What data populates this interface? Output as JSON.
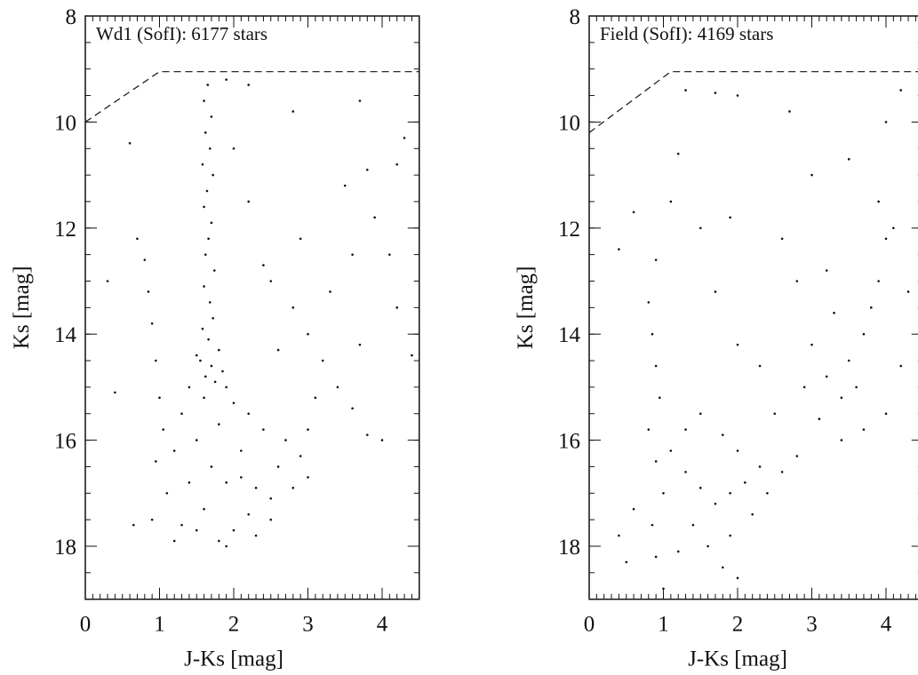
{
  "chart_data": [
    {
      "type": "scatter",
      "annotation": "Wd1 (SofI): 6177 stars",
      "x_label": "J-Ks [mag]",
      "y_label": "Ks [mag]",
      "xlim": [
        0,
        4.5
      ],
      "ylim": [
        8,
        19
      ],
      "y_inverted": true,
      "xticks": [
        0,
        1,
        2,
        3,
        4
      ],
      "yticks": [
        8,
        10,
        12,
        14,
        16,
        18
      ],
      "minor_xstep": 0.1,
      "minor_ystep": 0.5,
      "color": "#111111",
      "limit_line": {
        "x": [
          0,
          1,
          4.5
        ],
        "y": [
          10,
          9.05,
          9.05
        ]
      },
      "x": [
        1.65,
        1.6,
        1.7,
        1.62,
        1.68,
        1.58,
        1.72,
        1.64,
        1.6,
        1.7,
        1.66,
        1.62,
        1.74,
        1.6,
        1.68,
        1.72,
        1.58,
        1.66,
        1.8,
        1.55,
        1.7,
        1.85,
        1.62,
        1.75,
        1.9,
        1.5,
        0.8,
        0.85,
        0.9,
        0.95,
        1.0,
        1.05,
        0.95,
        1.1,
        0.9,
        1.2,
        0.65,
        0.6,
        0.4,
        0.3,
        0.7,
        1.3,
        1.5,
        1.7,
        1.9,
        2.1,
        2.3,
        2.5,
        2.2,
        2.0,
        1.8,
        1.6,
        1.4,
        1.3,
        2.6,
        2.8,
        2.4,
        2.2,
        2.0,
        1.8,
        1.6,
        1.4,
        2.7,
        2.9,
        3.0,
        2.5,
        2.3,
        1.9,
        1.5,
        1.2,
        2.1,
        2.5,
        2.8,
        3.0,
        3.2,
        3.4,
        3.6,
        3.8,
        4.0,
        3.3,
        3.6,
        3.9,
        4.1,
        3.7,
        3.1,
        2.9,
        3.5,
        4.2,
        3.8,
        2.6,
        2.4,
        2.2,
        2.0,
        1.9,
        2.2,
        2.8,
        3.7,
        4.3,
        4.2,
        4.4,
        3.0
      ],
      "y": [
        9.3,
        9.6,
        9.9,
        10.2,
        10.5,
        10.8,
        11.0,
        11.3,
        11.6,
        11.9,
        12.2,
        12.5,
        12.8,
        13.1,
        13.4,
        13.7,
        13.9,
        14.1,
        14.3,
        14.5,
        14.6,
        14.7,
        14.8,
        14.9,
        15.0,
        14.4,
        12.6,
        13.2,
        13.8,
        14.5,
        15.2,
        15.8,
        16.4,
        17.0,
        17.5,
        17.9,
        17.6,
        10.4,
        15.1,
        13.0,
        12.2,
        15.5,
        16.0,
        16.5,
        16.8,
        16.2,
        16.9,
        17.1,
        17.4,
        17.7,
        17.9,
        17.3,
        16.8,
        17.6,
        16.5,
        16.9,
        15.8,
        15.5,
        15.3,
        15.7,
        15.2,
        15.0,
        16.0,
        16.3,
        15.8,
        17.5,
        17.8,
        18.0,
        17.7,
        16.2,
        16.7,
        13.0,
        13.5,
        14.0,
        14.5,
        15.0,
        15.4,
        15.9,
        16.0,
        13.2,
        12.5,
        11.8,
        12.5,
        14.2,
        15.2,
        12.2,
        11.2,
        10.8,
        10.9,
        14.3,
        12.7,
        11.5,
        10.5,
        9.2,
        9.3,
        9.8,
        9.6,
        10.3,
        13.5,
        14.4,
        16.7
      ]
    },
    {
      "type": "scatter",
      "annotation": "Field (SofI): 4169 stars",
      "x_label": "J-Ks [mag]",
      "y_label": "Ks [mag]",
      "xlim": [
        0,
        4.5
      ],
      "ylim": [
        8,
        19
      ],
      "y_inverted": true,
      "xticks": [
        0,
        1,
        2,
        3,
        4
      ],
      "yticks": [
        8,
        10,
        12,
        14,
        16,
        18
      ],
      "minor_xstep": 0.1,
      "minor_ystep": 0.5,
      "color": "#111111",
      "limit_line": {
        "x": [
          0,
          1.1,
          4.5
        ],
        "y": [
          10.2,
          9.05,
          9.05
        ]
      },
      "x": [
        0.9,
        0.8,
        0.85,
        0.9,
        0.95,
        0.8,
        0.9,
        1.0,
        0.85,
        0.9,
        0.6,
        0.5,
        0.4,
        0.4,
        0.6,
        1.1,
        1.2,
        1.3,
        1.3,
        1.5,
        1.7,
        1.9,
        2.1,
        2.3,
        1.4,
        1.6,
        1.8,
        2.0,
        1.2,
        1.1,
        1.3,
        1.5,
        1.8,
        2.0,
        2.4,
        2.6,
        2.8,
        2.2,
        1.0,
        1.9,
        2.5,
        2.3,
        2.0,
        1.7,
        1.5,
        1.9,
        2.6,
        2.8,
        3.0,
        3.2,
        3.4,
        3.6,
        3.5,
        3.7,
        3.8,
        3.9,
        4.0,
        4.1,
        3.3,
        3.1,
        3.4,
        3.7,
        4.0,
        4.2,
        4.3,
        3.9,
        3.0,
        4.0,
        4.2,
        3.5,
        2.0,
        2.7,
        1.7,
        3.2,
        2.9
      ],
      "y": [
        12.6,
        13.4,
        14.0,
        14.6,
        15.2,
        15.8,
        16.4,
        17.0,
        17.6,
        18.2,
        17.3,
        18.3,
        17.8,
        12.4,
        11.7,
        11.5,
        10.6,
        9.4,
        16.6,
        16.9,
        17.2,
        17.0,
        16.8,
        16.5,
        17.6,
        18.0,
        18.4,
        18.6,
        18.1,
        16.2,
        15.8,
        15.5,
        15.9,
        16.2,
        17.0,
        16.6,
        16.3,
        17.4,
        18.8,
        17.8,
        15.5,
        14.6,
        14.2,
        13.2,
        12.0,
        11.8,
        12.2,
        13.0,
        14.2,
        14.8,
        15.2,
        15.0,
        14.5,
        14.0,
        13.5,
        13.0,
        12.2,
        12.0,
        13.6,
        15.6,
        16.0,
        15.8,
        15.5,
        14.6,
        13.2,
        11.5,
        11.0,
        10.0,
        9.4,
        10.7,
        9.5,
        9.8,
        9.45,
        12.8,
        15.0
      ]
    }
  ]
}
